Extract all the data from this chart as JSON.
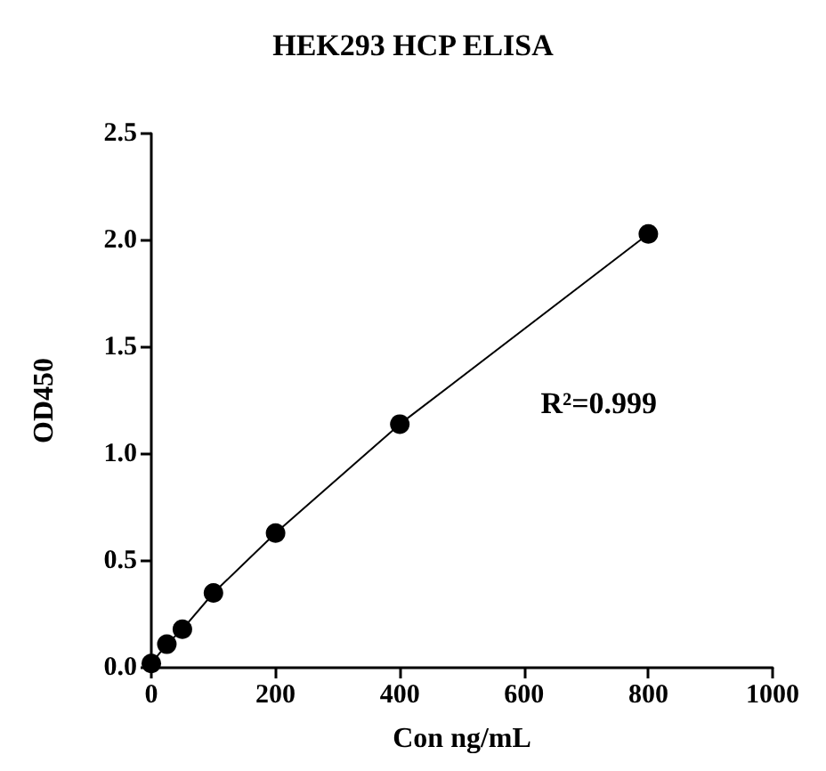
{
  "chart_data": {
    "type": "line",
    "title": "HEK293 HCP ELISA",
    "xlabel": "Con ng/mL",
    "ylabel": "OD450",
    "x": [
      0,
      25,
      50,
      100,
      200,
      400,
      800
    ],
    "series": [
      {
        "color": "#000000",
        "values": [
          0.02,
          0.11,
          0.18,
          0.35,
          0.63,
          1.14,
          2.03
        ]
      }
    ],
    "xlim": [
      0,
      1000
    ],
    "xticks": [
      0,
      200,
      400,
      600,
      800,
      1000
    ],
    "ylim": [
      0,
      2.5
    ],
    "yticks": [
      {
        "value": 0,
        "label": "0.0"
      },
      0.5,
      {
        "value": 1,
        "label": "1.0"
      },
      1.5,
      {
        "value": 2,
        "label": "2.0"
      },
      2.5
    ],
    "annotations": [
      "R²=0.999"
    ],
    "grid": false,
    "marker": "circle",
    "line_style": "solid"
  }
}
